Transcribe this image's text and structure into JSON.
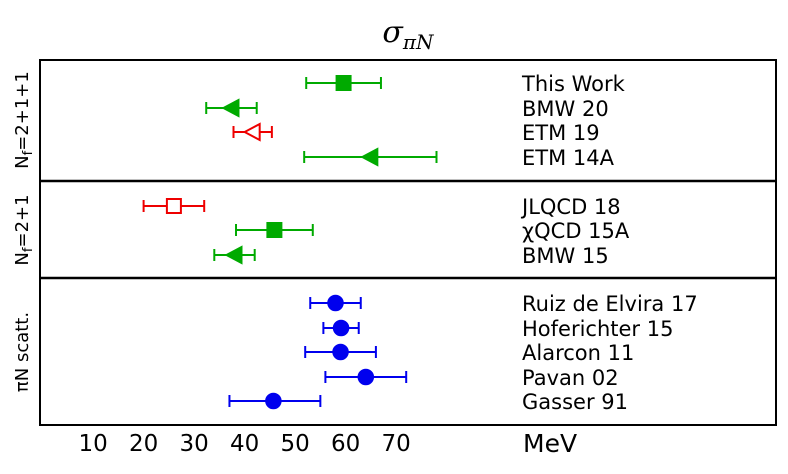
{
  "chart_data": {
    "type": "scatter",
    "title_main": "σ",
    "title_sub": "πN",
    "unit_label": "MeV",
    "xlim": [
      0,
      140
    ],
    "xticks": [
      "10",
      "20",
      "30",
      "40",
      "50",
      "60",
      "70"
    ],
    "groups": [
      {
        "label": "Nf=2+1+1",
        "label_main": "N",
        "label_sub": "f",
        "label_rest": "=2+1+1",
        "entries": [
          {
            "name": "This Work",
            "value": 59.6,
            "lo": 52.2,
            "hi": 67.0,
            "marker": "square",
            "filled": true,
            "color": "#00aa00"
          },
          {
            "name": "BMW 20",
            "value": 37.4,
            "lo": 32.4,
            "hi": 42.4,
            "marker": "triangle-left",
            "filled": true,
            "color": "#00aa00"
          },
          {
            "name": "ETM 19",
            "value": 41.6,
            "lo": 37.8,
            "hi": 45.4,
            "marker": "triangle-left",
            "filled": false,
            "color": "#ee0000"
          },
          {
            "name": "ETM 14A",
            "value": 64.9,
            "lo": 51.8,
            "hi": 78.0,
            "marker": "triangle-left",
            "filled": true,
            "color": "#00aa00"
          }
        ]
      },
      {
        "label": "Nf=2+1",
        "label_main": "N",
        "label_sub": "f",
        "label_rest": "=2+1",
        "entries": [
          {
            "name": "JLQCD 18",
            "value": 26.0,
            "lo": 20.0,
            "hi": 32.0,
            "marker": "square",
            "filled": false,
            "color": "#ee0000"
          },
          {
            "name": "χQCD 15A",
            "value": 45.9,
            "lo": 38.3,
            "hi": 53.5,
            "marker": "square",
            "filled": true,
            "color": "#00aa00"
          },
          {
            "name": "BMW 15",
            "value": 38.0,
            "lo": 34.0,
            "hi": 42.0,
            "marker": "triangle-left",
            "filled": true,
            "color": "#00aa00"
          }
        ]
      },
      {
        "label": "πN scatt.",
        "label_main": "πN scatt.",
        "label_sub": "",
        "label_rest": "",
        "entries": [
          {
            "name": "Ruiz de Elvira 17",
            "value": 58.0,
            "lo": 53.0,
            "hi": 63.0,
            "marker": "circle",
            "filled": true,
            "color": "#0000ee"
          },
          {
            "name": "Hoferichter 15",
            "value": 59.1,
            "lo": 55.6,
            "hi": 62.6,
            "marker": "circle",
            "filled": true,
            "color": "#0000ee"
          },
          {
            "name": "Alarcon 11",
            "value": 59.0,
            "lo": 52.0,
            "hi": 66.0,
            "marker": "circle",
            "filled": true,
            "color": "#0000ee"
          },
          {
            "name": "Pavan 02",
            "value": 64.0,
            "lo": 56.0,
            "hi": 72.0,
            "marker": "circle",
            "filled": true,
            "color": "#0000ee"
          },
          {
            "name": "Gasser 91",
            "value": 45.7,
            "lo": 37.0,
            "hi": 55.0,
            "marker": "circle",
            "filled": true,
            "color": "#0000ee"
          }
        ]
      }
    ],
    "grid": false,
    "legend": "none"
  }
}
